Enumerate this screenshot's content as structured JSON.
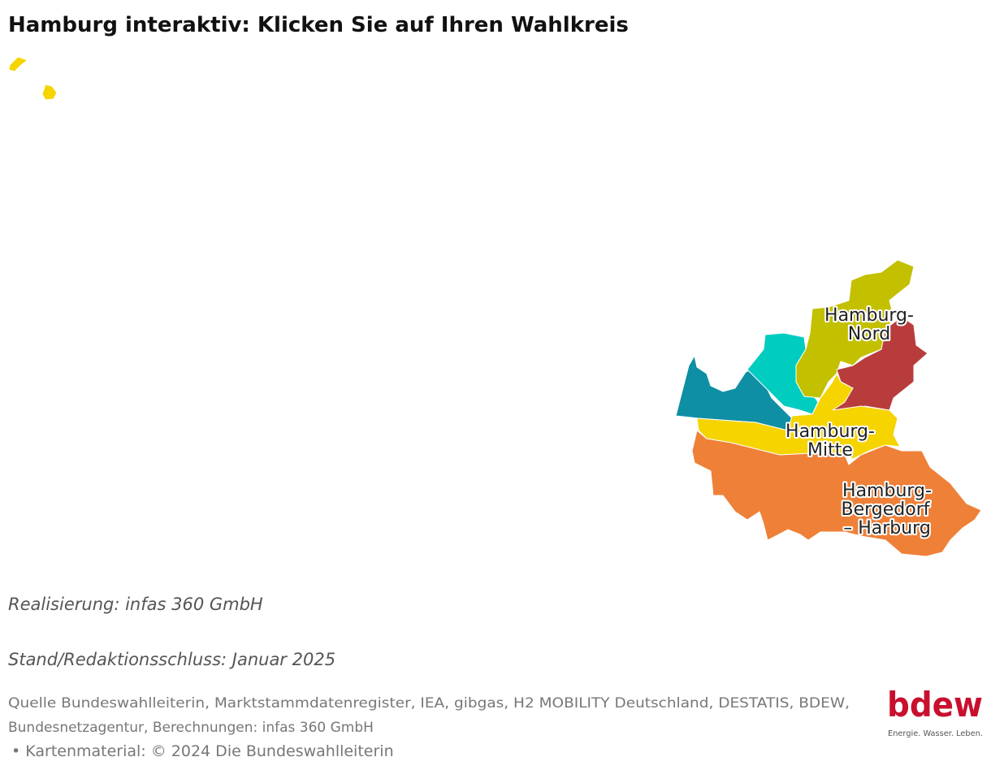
{
  "title": "Hamburg interaktiv: Klicken Sie auf Ihren Wahlkreis",
  "map": {
    "labels": [
      {
        "lines": [
          "Hamburg-",
          "Nord"
        ]
      },
      {
        "lines": [
          "Hamburg-",
          "Mitte"
        ]
      },
      {
        "lines": [
          "Hamburg-",
          "Bergedorf",
          "– Harburg"
        ]
      }
    ]
  },
  "notes": [
    "Realisierung: infas 360 GmbH",
    "Stand/Redaktionsschluss: Januar 2025"
  ],
  "source": {
    "lines": [
      "Quelle Bundeswahlleiterin, Marktstammdatenregister, IEA, gibgas, H2 MOBILITY Deutschland, DESTATIS, BDEW,",
      "Bundesnetzagentur, Berechnungen: infas 360 GmbH",
      "• Kartenmaterial: © 2024 Die Bundeswahlleiterin"
    ]
  },
  "logo": {
    "name": "bdew",
    "tagline": "Energie. Wasser. Leben."
  }
}
